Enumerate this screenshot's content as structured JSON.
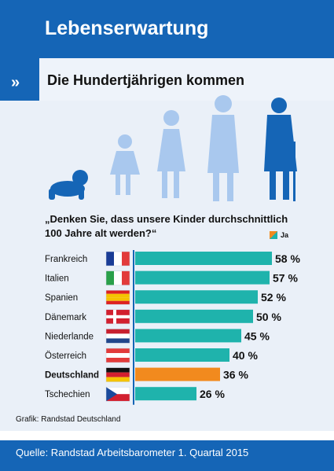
{
  "title": "Lebenserwartung",
  "chevron": "»",
  "subtitle": "Die Hundertjährigen kommen",
  "question_line1": "„Denken Sie, dass unsere Kinder durchschnittlich",
  "question_line2": "100 Jahre alt werden?“",
  "credit": "Grafik: Randstad Deutschland",
  "source": "Quelle: Randstad Arbeitsbarometer 1. Quartal 2015",
  "colors": {
    "bar": "#1fb3ac",
    "highlight": "#f28a1e",
    "header": "#1565b6",
    "silhouette": "#a9c8ee",
    "silhouette_dark": "#1565b6"
  },
  "chart_data": {
    "type": "bar",
    "orientation": "horizontal",
    "categories": [
      "Frankreich",
      "Italien",
      "Spanien",
      "Dänemark",
      "Niederlande",
      "Österreich",
      "Deutschland",
      "Tschechien"
    ],
    "series": [
      {
        "name": "Ja",
        "values": [
          58,
          57,
          52,
          50,
          45,
          40,
          36,
          26
        ]
      }
    ],
    "value_labels": [
      "58 %",
      "57 %",
      "52 %",
      "50 %",
      "45 %",
      "40 %",
      "36 %",
      "26 %"
    ],
    "highlight": "Deutschland",
    "xlim": [
      0,
      60
    ],
    "grid": false,
    "legend_position": "top-right"
  }
}
